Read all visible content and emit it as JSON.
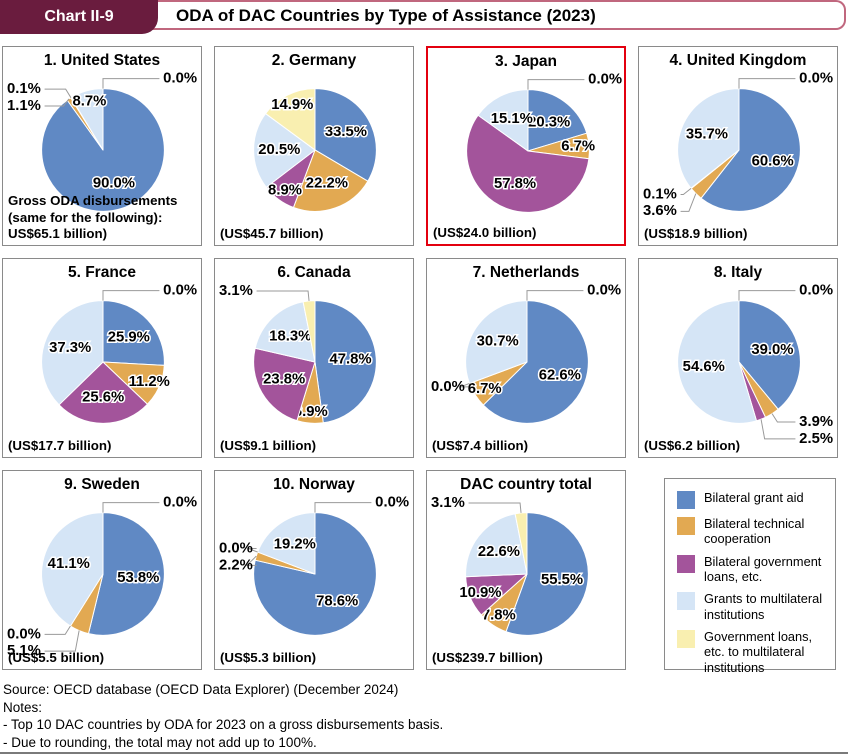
{
  "header": {
    "badge_label": "Chart II-9",
    "title": "ODA of DAC Countries by Type of Assistance (2023)"
  },
  "palette": {
    "slice_colors": [
      "#6089c4",
      "#e2a952",
      "#a3549b",
      "#d5e5f6",
      "#f9efb0"
    ],
    "highlight_border": "#e3000f",
    "badge_bg": "#6a1c3e",
    "header_border": "#c0677e",
    "box_border": "#8a8a8a",
    "leader_line": "#999999"
  },
  "categories": [
    "Bilateral grant aid",
    "Bilateral technical cooperation",
    "Bilateral government loans, etc.",
    "Grants to multilateral institutions",
    "Government loans, etc. to multilateral institutions"
  ],
  "legend": {
    "items": [
      {
        "label": "Bilateral grant aid",
        "color": "#6089c4"
      },
      {
        "label": "Bilateral technical cooperation",
        "color": "#e2a952"
      },
      {
        "label": "Bilateral government loans, etc.",
        "color": "#a3549b"
      },
      {
        "label": "Grants to multilateral institutions",
        "color": "#d5e5f6"
      },
      {
        "label": "Government loans, etc. to multilateral institutions",
        "color": "#f9efb0"
      }
    ]
  },
  "chart_data": [
    {
      "type": "pie",
      "title": "1. United States",
      "values": [
        90.0,
        1.1,
        0.1,
        8.7,
        0.0
      ],
      "note_lines": [
        "Gross ODA disbursements",
        "(same for the following):",
        "US$65.1 billion)"
      ],
      "highlighted": false
    },
    {
      "type": "pie",
      "title": "2. Germany",
      "values": [
        33.5,
        22.2,
        8.9,
        20.5,
        14.9
      ],
      "note_lines": [
        "(US$45.7 billion)"
      ],
      "highlighted": false
    },
    {
      "type": "pie",
      "title": "3. Japan",
      "values": [
        20.3,
        6.7,
        57.8,
        15.1,
        0.0
      ],
      "note_lines": [
        "(US$24.0 billion)"
      ],
      "highlighted": true
    },
    {
      "type": "pie",
      "title": "4. United Kingdom",
      "values": [
        60.6,
        3.6,
        0.1,
        35.7,
        0.0
      ],
      "note_lines": [
        "(US$18.9 billion)"
      ],
      "highlighted": false
    },
    {
      "type": "pie",
      "title": "5. France",
      "values": [
        25.9,
        11.2,
        25.6,
        37.3,
        0.0
      ],
      "note_lines": [
        "(US$17.7 billion)"
      ],
      "highlighted": false
    },
    {
      "type": "pie",
      "title": "6. Canada",
      "values": [
        47.8,
        6.9,
        23.8,
        18.3,
        3.1
      ],
      "note_lines": [
        "(US$9.1 billion)"
      ],
      "highlighted": false
    },
    {
      "type": "pie",
      "title": "7. Netherlands",
      "values": [
        62.6,
        6.7,
        0.0,
        30.7,
        0.0
      ],
      "note_lines": [
        "(US$7.4 billion)"
      ],
      "highlighted": false
    },
    {
      "type": "pie",
      "title": "8. Italy",
      "values": [
        39.0,
        3.9,
        2.5,
        54.6,
        0.0
      ],
      "note_lines": [
        "(US$6.2 billion)"
      ],
      "highlighted": false
    },
    {
      "type": "pie",
      "title": "9. Sweden",
      "values": [
        53.8,
        5.1,
        0.0,
        41.1,
        0.0
      ],
      "note_lines": [
        "(US$5.5 billion)"
      ],
      "highlighted": false
    },
    {
      "type": "pie",
      "title": "10. Norway",
      "values": [
        78.6,
        2.2,
        0.0,
        19.2,
        0.0
      ],
      "note_lines": [
        "(US$5.3 billion)"
      ],
      "highlighted": false
    },
    {
      "type": "pie",
      "title": "DAC country total",
      "values": [
        55.5,
        7.8,
        10.9,
        22.6,
        3.1
      ],
      "note_lines": [
        "(US$239.7 billion)"
      ],
      "highlighted": false
    }
  ],
  "footer": {
    "source": "Source: OECD database (OECD Data Explorer) (December 2024)",
    "notes_label": "Notes:",
    "notes": [
      "- Top 10 DAC countries by ODA for 2023 on a gross disbursements basis.",
      "- Due to rounding, the total may not add up to 100%."
    ]
  }
}
